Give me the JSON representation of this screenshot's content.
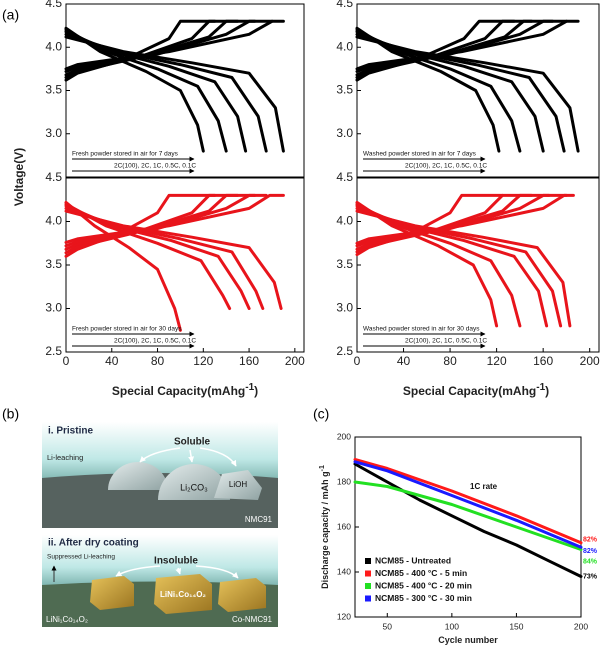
{
  "panel_labels": [
    "(a)",
    "(b)",
    "(c)"
  ],
  "diagram_b": {
    "top": {
      "title": "i. Pristine",
      "soluble": "Soluble",
      "leaching": "Li-leaching",
      "carbonate": "Li₂CO₃",
      "hydroxide": "LiOH",
      "material": "NMC91"
    },
    "bottom": {
      "title": "ii. After dry coating",
      "suppressed": "Suppressed Li-leaching",
      "insoluble": "Insoluble",
      "coating_on_box": "LiNi₁Co₁₄O₂",
      "coating_label": "LiNi₁Co₁₄O₂",
      "material": "Co-NMC91"
    }
  },
  "chart_data": [
    {
      "type": "line",
      "y_label": "Voltage(V)",
      "xlim": [
        0,
        208
      ],
      "ylim": [
        2.5,
        4.5
      ],
      "yticks": [
        {
          "value": 3,
          "label": "3.0"
        },
        3.5,
        {
          "value": 4,
          "label": "4.0"
        },
        4.5
      ],
      "annotations": [
        "Fresh powder stored in air for 7 days",
        "2C(100), 2C, 1C, 0.5C, 0.1C"
      ],
      "series": [
        {
          "color": "#000000",
          "x": [
            0,
            30,
            70,
            100,
            115,
            120
          ],
          "values": [
            4.22,
            3.95,
            3.72,
            3.5,
            3.1,
            2.8
          ]
        },
        {
          "color": "#000000",
          "x": [
            0,
            35,
            80,
            115,
            133,
            140
          ],
          "values": [
            4.2,
            3.95,
            3.75,
            3.55,
            3.15,
            2.8
          ]
        },
        {
          "color": "#000000",
          "x": [
            0,
            40,
            90,
            130,
            150,
            157
          ],
          "values": [
            4.18,
            3.95,
            3.78,
            3.6,
            3.2,
            2.8
          ]
        },
        {
          "color": "#000000",
          "x": [
            0,
            45,
            100,
            145,
            168,
            175
          ],
          "values": [
            4.15,
            3.95,
            3.8,
            3.65,
            3.2,
            2.8
          ]
        },
        {
          "color": "#000000",
          "x": [
            0,
            50,
            110,
            160,
            183,
            190
          ],
          "values": [
            4.12,
            3.95,
            3.82,
            3.7,
            3.3,
            2.8
          ]
        },
        {
          "color": "#000000",
          "x": [
            0,
            10,
            50,
            90,
            100,
            130
          ],
          "values": [
            3.62,
            3.7,
            3.85,
            4.1,
            4.3,
            4.3
          ]
        },
        {
          "color": "#000000",
          "x": [
            0,
            10,
            60,
            110,
            125,
            150
          ],
          "values": [
            3.65,
            3.72,
            3.87,
            4.1,
            4.3,
            4.3
          ]
        },
        {
          "color": "#000000",
          "x": [
            0,
            10,
            70,
            125,
            140,
            165
          ],
          "values": [
            3.68,
            3.74,
            3.9,
            4.12,
            4.3,
            4.3
          ]
        },
        {
          "color": "#000000",
          "x": [
            0,
            10,
            80,
            140,
            160,
            180
          ],
          "values": [
            3.72,
            3.77,
            3.92,
            4.15,
            4.3,
            4.3
          ]
        },
        {
          "color": "#000000",
          "x": [
            0,
            10,
            90,
            160,
            180,
            190
          ],
          "values": [
            3.75,
            3.8,
            3.95,
            4.15,
            4.3,
            4.3
          ]
        }
      ]
    },
    {
      "type": "line",
      "xlim": [
        0,
        208
      ],
      "ylim": [
        2.5,
        4.5
      ],
      "yticks": [
        {
          "value": 3,
          "label": "3.0"
        },
        3.5,
        {
          "value": 4,
          "label": "4.0"
        },
        4.5
      ],
      "annotations": [
        "Washed powder stored in air for 7 days",
        "2C(100), 2C, 1C, 0.5C, 0.1C"
      ],
      "series": [
        {
          "color": "#000000",
          "x": [
            0,
            30,
            72,
            102,
            117,
            122
          ],
          "values": [
            4.22,
            3.95,
            3.72,
            3.5,
            3.1,
            2.8
          ]
        },
        {
          "color": "#000000",
          "x": [
            0,
            35,
            80,
            115,
            133,
            140
          ],
          "values": [
            4.2,
            3.95,
            3.75,
            3.55,
            3.15,
            2.8
          ]
        },
        {
          "color": "#000000",
          "x": [
            0,
            40,
            92,
            133,
            153,
            160
          ],
          "values": [
            4.18,
            3.95,
            3.78,
            3.6,
            3.2,
            2.8
          ]
        },
        {
          "color": "#000000",
          "x": [
            0,
            45,
            102,
            148,
            171,
            178
          ],
          "values": [
            4.15,
            3.95,
            3.8,
            3.65,
            3.2,
            2.8
          ]
        },
        {
          "color": "#000000",
          "x": [
            0,
            50,
            110,
            160,
            183,
            190
          ],
          "values": [
            4.12,
            3.95,
            3.82,
            3.7,
            3.3,
            2.8
          ]
        },
        {
          "color": "#000000",
          "x": [
            0,
            10,
            50,
            92,
            105,
            135
          ],
          "values": [
            3.62,
            3.7,
            3.85,
            4.1,
            4.3,
            4.3
          ]
        },
        {
          "color": "#000000",
          "x": [
            0,
            10,
            60,
            110,
            125,
            150
          ],
          "values": [
            3.65,
            3.72,
            3.87,
            4.1,
            4.3,
            4.3
          ]
        },
        {
          "color": "#000000",
          "x": [
            0,
            10,
            72,
            127,
            143,
            168
          ],
          "values": [
            3.68,
            3.74,
            3.9,
            4.12,
            4.3,
            4.3
          ]
        },
        {
          "color": "#000000",
          "x": [
            0,
            10,
            80,
            140,
            160,
            180
          ],
          "values": [
            3.72,
            3.77,
            3.92,
            4.15,
            4.3,
            4.3
          ]
        },
        {
          "color": "#000000",
          "x": [
            0,
            10,
            90,
            160,
            180,
            190
          ],
          "values": [
            3.75,
            3.8,
            3.95,
            4.15,
            4.3,
            4.3
          ]
        }
      ]
    },
    {
      "type": "line",
      "x_label": "Special Capacity(mAhg",
      "x_label_sup": "-1",
      "x_label_end": ")",
      "xlim": [
        0,
        208
      ],
      "ylim": [
        2.5,
        4.5
      ],
      "xticks": [
        0,
        40,
        80,
        120,
        160,
        200
      ],
      "yticks": [
        2.5,
        {
          "value": 3,
          "label": "3.0"
        },
        3.5,
        {
          "value": 4,
          "label": "4.0"
        },
        4.5
      ],
      "annotations": [
        "Fresh powder stored in air for 30 days",
        "2C(100), 2C, 1C, 0.5C, 0.1C"
      ],
      "series": [
        {
          "color": "#e8141b",
          "x": [
            0,
            25,
            55,
            80,
            95,
            100
          ],
          "values": [
            4.22,
            3.95,
            3.7,
            3.45,
            3.0,
            2.75
          ]
        },
        {
          "color": "#e8141b",
          "x": [
            0,
            35,
            80,
            118,
            137,
            143
          ],
          "values": [
            4.2,
            3.95,
            3.75,
            3.55,
            3.15,
            3.0
          ]
        },
        {
          "color": "#e8141b",
          "x": [
            0,
            40,
            92,
            133,
            153,
            160
          ],
          "values": [
            4.18,
            3.95,
            3.78,
            3.6,
            3.2,
            3.0
          ]
        },
        {
          "color": "#e8141b",
          "x": [
            0,
            45,
            100,
            145,
            166,
            172
          ],
          "values": [
            4.15,
            3.95,
            3.8,
            3.65,
            3.2,
            3.0
          ]
        },
        {
          "color": "#e8141b",
          "x": [
            0,
            50,
            110,
            160,
            182,
            188
          ],
          "values": [
            4.12,
            3.95,
            3.82,
            3.7,
            3.3,
            3.0
          ]
        },
        {
          "color": "#e8141b",
          "x": [
            0,
            10,
            45,
            80,
            90,
            130
          ],
          "values": [
            3.6,
            3.68,
            3.85,
            4.1,
            4.3,
            4.3
          ]
        },
        {
          "color": "#e8141b",
          "x": [
            0,
            10,
            60,
            110,
            125,
            150
          ],
          "values": [
            3.64,
            3.71,
            3.87,
            4.1,
            4.3,
            4.3
          ]
        },
        {
          "color": "#e8141b",
          "x": [
            0,
            10,
            70,
            125,
            140,
            165
          ],
          "values": [
            3.68,
            3.74,
            3.9,
            4.12,
            4.3,
            4.3
          ]
        },
        {
          "color": "#e8141b",
          "x": [
            0,
            10,
            80,
            140,
            160,
            175
          ],
          "values": [
            3.72,
            3.77,
            3.92,
            4.15,
            4.3,
            4.3
          ]
        },
        {
          "color": "#e8141b",
          "x": [
            0,
            10,
            90,
            160,
            178,
            190
          ],
          "values": [
            3.76,
            3.8,
            3.95,
            4.15,
            4.3,
            4.3
          ]
        }
      ]
    },
    {
      "type": "line",
      "x_label": "Special Capacity(mAhg",
      "x_label_sup": "-1",
      "x_label_end": ")",
      "xlim": [
        0,
        208
      ],
      "ylim": [
        2.5,
        4.5
      ],
      "xticks": [
        0,
        40,
        80,
        120,
        160,
        200
      ],
      "yticks": [
        2.5,
        {
          "value": 3,
          "label": "3.0"
        },
        3.5,
        {
          "value": 4,
          "label": "4.0"
        },
        4.5
      ],
      "annotations": [
        "Washed powder stored in air for 30 days",
        "2C(100), 2C, 1C, 0.5C, 0.1C"
      ],
      "series": [
        {
          "color": "#e8141b",
          "x": [
            0,
            30,
            70,
            100,
            115,
            120
          ],
          "values": [
            4.22,
            3.95,
            3.72,
            3.5,
            3.1,
            2.8
          ]
        },
        {
          "color": "#e8141b",
          "x": [
            0,
            35,
            80,
            115,
            133,
            140
          ],
          "values": [
            4.2,
            3.95,
            3.75,
            3.55,
            3.15,
            2.8
          ]
        },
        {
          "color": "#e8141b",
          "x": [
            0,
            40,
            92,
            135,
            156,
            163
          ],
          "values": [
            4.18,
            3.95,
            3.78,
            3.6,
            3.2,
            2.8
          ]
        },
        {
          "color": "#e8141b",
          "x": [
            0,
            45,
            100,
            145,
            168,
            175
          ],
          "values": [
            4.15,
            3.95,
            3.8,
            3.65,
            3.2,
            2.8
          ]
        },
        {
          "color": "#e8141b",
          "x": [
            0,
            50,
            108,
            155,
            177,
            183
          ],
          "values": [
            4.12,
            3.95,
            3.82,
            3.7,
            3.3,
            2.8
          ]
        },
        {
          "color": "#e8141b",
          "x": [
            0,
            10,
            45,
            80,
            90,
            125
          ],
          "values": [
            3.62,
            3.7,
            3.85,
            4.1,
            4.3,
            4.3
          ]
        },
        {
          "color": "#e8141b",
          "x": [
            0,
            10,
            60,
            110,
            125,
            150
          ],
          "values": [
            3.65,
            3.72,
            3.87,
            4.1,
            4.3,
            4.3
          ]
        },
        {
          "color": "#e8141b",
          "x": [
            0,
            10,
            70,
            125,
            140,
            165
          ],
          "values": [
            3.68,
            3.74,
            3.9,
            4.12,
            4.3,
            4.3
          ]
        },
        {
          "color": "#e8141b",
          "x": [
            0,
            10,
            80,
            140,
            160,
            180
          ],
          "values": [
            3.72,
            3.77,
            3.92,
            4.15,
            4.3,
            4.3
          ]
        },
        {
          "color": "#e8141b",
          "x": [
            0,
            10,
            90,
            160,
            178,
            186
          ],
          "values": [
            3.75,
            3.8,
            3.95,
            4.15,
            4.3,
            4.3
          ]
        }
      ]
    },
    {
      "type": "line",
      "y_label": "Discharge capacity / mAh g",
      "y_label_sup": "-1",
      "x_label": "Cycle number",
      "annotations": [
        "1C rate"
      ],
      "xlim": [
        25,
        200
      ],
      "ylim": [
        120,
        200
      ],
      "xticks": [
        50,
        100,
        150,
        200
      ],
      "yticks": [
        120,
        140,
        160,
        180,
        200
      ],
      "legend": "lower left",
      "series": [
        {
          "name": "NCM85 - Untreated",
          "color": "#000000",
          "end_label": "73%",
          "x": [
            25,
            50,
            75,
            100,
            125,
            150,
            175,
            200
          ],
          "values": [
            188,
            180,
            172,
            165,
            158,
            152,
            145,
            138
          ]
        },
        {
          "name": "NCM85 - 400 °C - 5 min",
          "color": "#ff1a1a",
          "end_label": "82%",
          "x": [
            25,
            50,
            100,
            150,
            200
          ],
          "values": [
            190,
            186,
            176,
            165,
            153
          ]
        },
        {
          "name": "NCM85 - 400 °C - 20 min",
          "color": "#22e022",
          "end_label": "84%",
          "x": [
            25,
            50,
            100,
            150,
            200
          ],
          "values": [
            180,
            178,
            170,
            160,
            150
          ]
        },
        {
          "name": "NCM85 - 300 °C - 30 min",
          "color": "#1a1aff",
          "end_label": "82%",
          "x": [
            25,
            50,
            100,
            150,
            200
          ],
          "values": [
            189,
            185,
            174,
            163,
            151
          ]
        }
      ]
    }
  ]
}
